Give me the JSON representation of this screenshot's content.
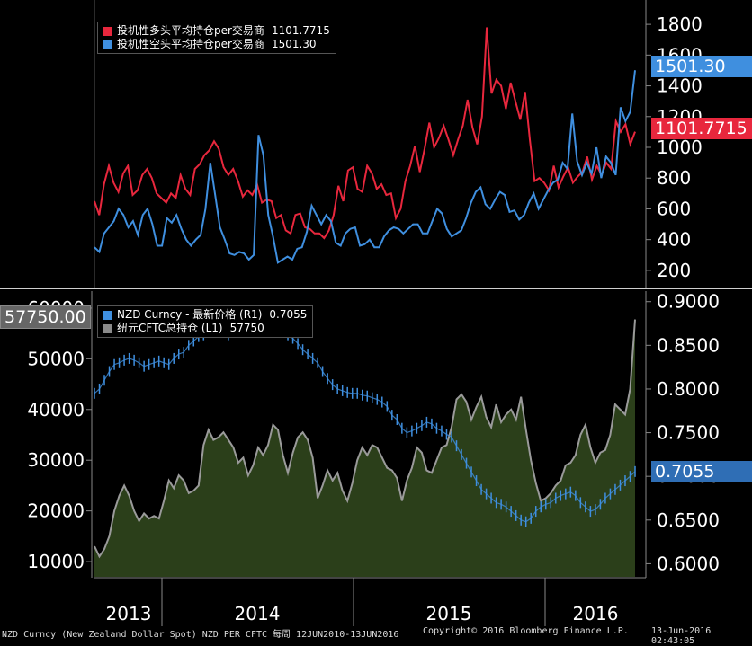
{
  "colors": {
    "background": "#000000",
    "long_line": "#e8273d",
    "short_line": "#3f8fdf",
    "nzd_price": "#3f8fdf",
    "cftc_fill": "#2b3f1a",
    "cftc_line": "#9a9a9a",
    "divider": "#cfcfcf"
  },
  "chart_data": [
    {
      "type": "line",
      "panel": "top",
      "axis": "right",
      "ylim": [
        100,
        1900
      ],
      "yticks": [
        200,
        400,
        600,
        800,
        1000,
        1200,
        1400,
        1600,
        1800
      ],
      "grid": false,
      "legend_position": "top-left",
      "series": [
        {
          "name": "投机性多头平均持仓per交易商",
          "last_value": "1101.7715",
          "color": "#e8273d",
          "values": [
            650,
            560,
            760,
            880,
            770,
            710,
            830,
            880,
            690,
            720,
            820,
            860,
            800,
            700,
            670,
            640,
            700,
            670,
            820,
            730,
            690,
            860,
            890,
            950,
            980,
            1040,
            990,
            870,
            820,
            860,
            780,
            680,
            720,
            690,
            760,
            640,
            660,
            650,
            540,
            560,
            460,
            440,
            560,
            570,
            480,
            470,
            440,
            440,
            410,
            460,
            560,
            750,
            650,
            850,
            870,
            730,
            710,
            880,
            830,
            730,
            760,
            690,
            700,
            540,
            600,
            780,
            880,
            1010,
            840,
            990,
            1160,
            1000,
            1060,
            1140,
            1050,
            950,
            1050,
            1140,
            1310,
            1130,
            1020,
            1200,
            1780,
            1350,
            1440,
            1400,
            1250,
            1420,
            1300,
            1180,
            1360,
            1050,
            780,
            800,
            770,
            720,
            880,
            740,
            810,
            870,
            770,
            810,
            840,
            940,
            790,
            880,
            820,
            900,
            860,
            1170,
            1100,
            1150,
            1020,
            1101.77
          ]
        },
        {
          "name": "投机性空头平均持仓per交易商",
          "last_value": "1501.30",
          "color": "#3f8fdf",
          "values": [
            350,
            320,
            440,
            480,
            520,
            600,
            560,
            480,
            520,
            430,
            560,
            600,
            500,
            360,
            360,
            540,
            510,
            560,
            470,
            400,
            360,
            400,
            430,
            600,
            900,
            690,
            480,
            400,
            310,
            300,
            320,
            310,
            270,
            300,
            1080,
            950,
            560,
            420,
            250,
            270,
            290,
            270,
            340,
            350,
            450,
            620,
            560,
            500,
            560,
            520,
            380,
            360,
            440,
            470,
            480,
            360,
            370,
            400,
            350,
            350,
            420,
            460,
            480,
            470,
            440,
            470,
            500,
            500,
            440,
            440,
            520,
            600,
            570,
            470,
            420,
            440,
            460,
            540,
            640,
            710,
            740,
            630,
            600,
            660,
            710,
            690,
            580,
            590,
            530,
            560,
            640,
            700,
            600,
            660,
            720,
            770,
            790,
            900,
            860,
            1220,
            910,
            820,
            900,
            830,
            1000,
            800,
            940,
            900,
            820,
            1260,
            1170,
            1230,
            1501.3
          ]
        }
      ]
    },
    {
      "type": "area",
      "panel": "bottom",
      "axis": "left",
      "ylim": [
        7000,
        63000
      ],
      "yticks": [
        10000,
        20000,
        30000,
        40000,
        50000,
        60000
      ],
      "legend_position": "top-left",
      "series": [
        {
          "name": "纽元CFTC总持仓 (L1)",
          "last_value": "57750",
          "values": [
            13000,
            11000,
            12500,
            15000,
            20000,
            23000,
            25000,
            23000,
            20000,
            18000,
            19500,
            18500,
            19000,
            18500,
            22000,
            26000,
            24500,
            27000,
            26000,
            23500,
            24000,
            25000,
            33000,
            36000,
            34000,
            34500,
            35500,
            34000,
            32500,
            29500,
            30500,
            27000,
            29000,
            32500,
            31000,
            33000,
            37000,
            36000,
            31000,
            27500,
            31500,
            34500,
            35500,
            34000,
            30500,
            22500,
            25000,
            28000,
            26000,
            27500,
            24000,
            22000,
            25500,
            30000,
            32500,
            31000,
            33000,
            32500,
            30500,
            28500,
            28000,
            26500,
            22000,
            26000,
            28500,
            32500,
            31500,
            28000,
            27500,
            30000,
            32500,
            33000,
            36500,
            42000,
            43000,
            41500,
            38000,
            40500,
            42500,
            38500,
            36500,
            41000,
            37500,
            39000,
            40000,
            38000,
            42500,
            36000,
            30000,
            25500,
            22000,
            22500,
            23500,
            25000,
            26000,
            29000,
            29500,
            31000,
            35000,
            37000,
            32500,
            29500,
            31500,
            32000,
            35000,
            41000,
            40000,
            39000,
            44000,
            57750
          ]
        }
      ]
    },
    {
      "type": "line",
      "panel": "bottom",
      "axis": "right",
      "ylim": [
        0.585,
        0.91
      ],
      "yticks": [
        0.6,
        0.65,
        0.7,
        0.75,
        0.8,
        0.85,
        0.9
      ],
      "series": [
        {
          "name": "NZD Curncy - 最新价格 (R1)",
          "last_value": "0.7055",
          "values": [
            0.795,
            0.8,
            0.81,
            0.82,
            0.828,
            0.83,
            0.833,
            0.835,
            0.833,
            0.83,
            0.826,
            0.828,
            0.83,
            0.832,
            0.83,
            0.828,
            0.835,
            0.84,
            0.842,
            0.85,
            0.855,
            0.86,
            0.862,
            0.865,
            0.868,
            0.87,
            0.868,
            0.862,
            0.865,
            0.868,
            0.872,
            0.875,
            0.87,
            0.865,
            0.868,
            0.87,
            0.872,
            0.868,
            0.865,
            0.862,
            0.858,
            0.852,
            0.845,
            0.84,
            0.835,
            0.83,
            0.82,
            0.812,
            0.805,
            0.8,
            0.798,
            0.796,
            0.795,
            0.795,
            0.793,
            0.792,
            0.79,
            0.788,
            0.785,
            0.78,
            0.77,
            0.765,
            0.755,
            0.75,
            0.752,
            0.755,
            0.758,
            0.762,
            0.76,
            0.755,
            0.752,
            0.748,
            0.745,
            0.735,
            0.725,
            0.715,
            0.705,
            0.695,
            0.685,
            0.68,
            0.675,
            0.67,
            0.668,
            0.665,
            0.66,
            0.655,
            0.65,
            0.648,
            0.652,
            0.66,
            0.665,
            0.668,
            0.67,
            0.675,
            0.678,
            0.68,
            0.682,
            0.678,
            0.67,
            0.665,
            0.66,
            0.662,
            0.668,
            0.675,
            0.68,
            0.685,
            0.69,
            0.695,
            0.7,
            0.7055
          ]
        }
      ]
    }
  ],
  "axis_tags": {
    "short_tag": "1501.30",
    "long_tag": "1101.7715",
    "nzd_tag": "0.7055",
    "cftc_tag": "57750.00"
  },
  "x_axis": {
    "years": [
      "2013",
      "2014",
      "2015",
      "2016"
    ]
  },
  "footer": {
    "left": "NZD Curncy (New Zealand Dollar Spot) NZD PER CFTC  每周 12JUN2010-13JUN2016",
    "center": "Copyright© 2016 Bloomberg Finance L.P.",
    "right": "13-Jun-2016 02:43:05"
  }
}
